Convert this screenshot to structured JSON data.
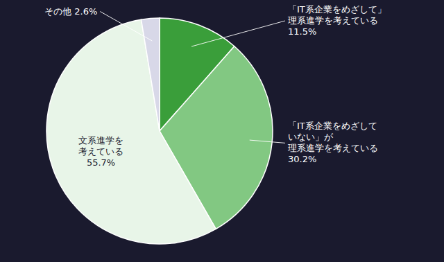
{
  "chart_data": {
    "type": "pie",
    "categories": [
      "「IT系企業をめざして」\n理系進学を考えている\n11.5%",
      "「IT系企業をめざして\nいない」が\n理系進学を考えている\n30.2%",
      "文系進学を\n考えている\n55.7%",
      "その他 2.6%"
    ],
    "values": [
      11.5,
      30.2,
      55.7,
      2.6
    ],
    "colors": [
      "#3a9e3a",
      "#82c882",
      "#e8f5e8",
      "#d8d8e8"
    ]
  }
}
